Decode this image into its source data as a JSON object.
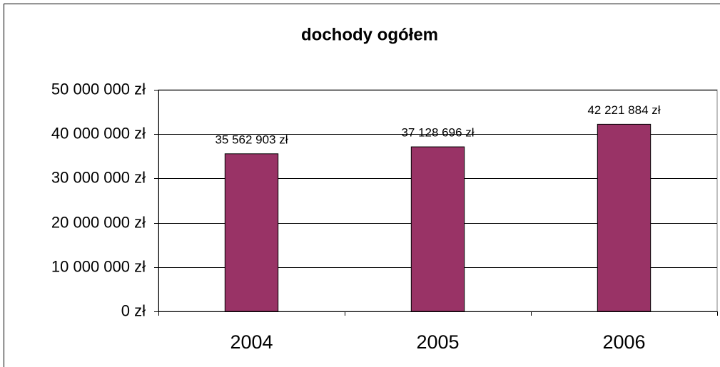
{
  "chart_data": {
    "type": "bar",
    "title": "dochody ogółem",
    "categories": [
      "2004",
      "2005",
      "2006"
    ],
    "values": [
      35562903,
      37128696,
      42221884
    ],
    "value_labels": [
      "35 562 903 zł",
      "37 128 696 zł",
      "42 221 884 zł"
    ],
    "color": "#993366",
    "ylim": [
      0,
      50000000
    ],
    "yticks": [
      {
        "value": 0,
        "label": "0 zł"
      },
      {
        "value": 10000000,
        "label": "10 000 000 zł"
      },
      {
        "value": 20000000,
        "label": "20 000 000 zł"
      },
      {
        "value": 30000000,
        "label": "30 000 000 zł"
      },
      {
        "value": 40000000,
        "label": "40 000 000 zł"
      },
      {
        "value": 50000000,
        "label": "50 000 000 zł"
      }
    ],
    "grid": true
  }
}
